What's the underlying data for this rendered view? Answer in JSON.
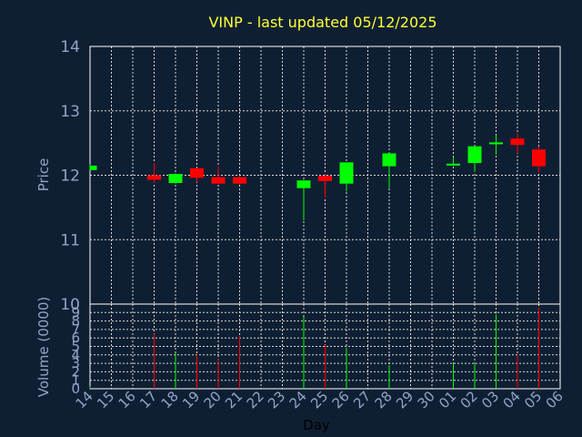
{
  "colors": {
    "background": "#0f1f33",
    "plot_border": "#ffffff",
    "grid": "#d8d8d8",
    "up": "#00ff00",
    "down": "#ff0000",
    "title": "#ffff33",
    "tick": "#8fa6c8"
  },
  "chart_data": {
    "type": "candlestick",
    "title": "VINP - last updated 05/12/2025",
    "xlabel": "Day",
    "ylabel": "Price",
    "volume_label": "Volume (0000)",
    "ylim": [
      10,
      14
    ],
    "yticks": [
      10,
      11,
      12,
      13,
      14
    ],
    "volume_ylim": [
      0,
      10
    ],
    "volume_yticks": [
      0,
      1,
      2,
      3,
      4,
      5,
      6,
      7,
      8,
      9
    ],
    "grid": true,
    "x_tick_labels": [
      "14",
      "15",
      "16",
      "17",
      "18",
      "19",
      "20",
      "21",
      "22",
      "23",
      "24",
      "25",
      "26",
      "27",
      "28",
      "29",
      "30",
      "01",
      "02",
      "03",
      "04",
      "05",
      "06"
    ],
    "candles": [
      {
        "day": "14",
        "open": 12.08,
        "high": 12.17,
        "low": 12.08,
        "close": 12.15,
        "volume": 0.3
      },
      {
        "day": "17",
        "open": 12.0,
        "high": 12.19,
        "low": 11.88,
        "close": 11.93,
        "volume": 6.5
      },
      {
        "day": "18",
        "open": 11.88,
        "high": 12.03,
        "low": 11.87,
        "close": 12.02,
        "volume": 4.2
      },
      {
        "day": "19",
        "open": 12.11,
        "high": 12.11,
        "low": 11.89,
        "close": 11.96,
        "volume": 4.0
      },
      {
        "day": "20",
        "open": 11.97,
        "high": 12.14,
        "low": 11.86,
        "close": 11.87,
        "volume": 3.5
      },
      {
        "day": "21",
        "open": 11.97,
        "high": 11.99,
        "low": 11.85,
        "close": 11.87,
        "volume": 6.2
      },
      {
        "day": "24",
        "open": 11.8,
        "high": 11.93,
        "low": 11.3,
        "close": 11.92,
        "volume": 8.5
      },
      {
        "day": "25",
        "open": 11.99,
        "high": 12.02,
        "low": 11.65,
        "close": 11.91,
        "volume": 5.2
      },
      {
        "day": "26",
        "open": 11.87,
        "high": 12.2,
        "low": 11.75,
        "close": 12.2,
        "volume": 4.8
      },
      {
        "day": "28",
        "open": 12.14,
        "high": 12.35,
        "low": 11.8,
        "close": 12.34,
        "volume": 2.8
      },
      {
        "day": "01",
        "open": 12.15,
        "high": 12.28,
        "low": 12.15,
        "close": 12.18,
        "volume": 3.0
      },
      {
        "day": "02",
        "open": 12.19,
        "high": 12.45,
        "low": 12.05,
        "close": 12.45,
        "volume": 3.0
      },
      {
        "day": "03",
        "open": 12.5,
        "high": 12.62,
        "low": 12.32,
        "close": 12.51,
        "volume": 8.8
      },
      {
        "day": "04",
        "open": 12.57,
        "high": 12.65,
        "low": 12.34,
        "close": 12.47,
        "volume": 4.0
      },
      {
        "day": "05",
        "open": 12.4,
        "high": 12.45,
        "low": 12.04,
        "close": 12.14,
        "volume": 9.6
      }
    ]
  }
}
